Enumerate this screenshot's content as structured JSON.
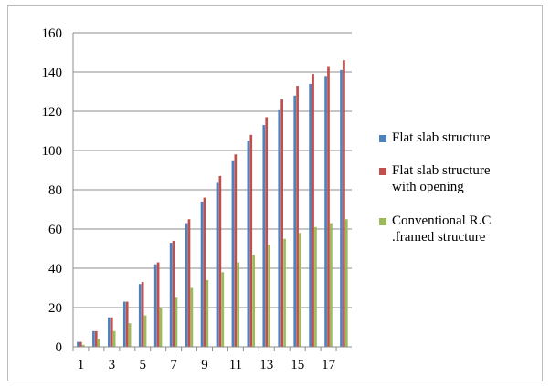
{
  "chart_data": {
    "type": "bar",
    "title": "",
    "xlabel": "",
    "ylabel": "",
    "ylim": [
      0,
      160
    ],
    "yticks": [
      0,
      20,
      40,
      60,
      80,
      100,
      120,
      140,
      160
    ],
    "grid": true,
    "legend_position": "right",
    "categories": [
      1,
      2,
      3,
      4,
      5,
      6,
      7,
      8,
      9,
      10,
      11,
      12,
      13,
      14,
      15,
      16,
      17,
      18
    ],
    "xtick_labels": [
      "1",
      "3",
      "5",
      "7",
      "9",
      "11",
      "13",
      "15",
      "17"
    ],
    "series": [
      {
        "name": "Flat slab structure",
        "color": "#4f81bd",
        "values": [
          2.5,
          8,
          15,
          23,
          32,
          42,
          53,
          63,
          74,
          84,
          95,
          105,
          113,
          121,
          128,
          134,
          138,
          141
        ]
      },
      {
        "name": "Flat slab structure with opening",
        "color": "#c0504d",
        "values": [
          2.5,
          8,
          15,
          23,
          33,
          43,
          54,
          65,
          76,
          87,
          98,
          108,
          117,
          126,
          133,
          139,
          143,
          146
        ]
      },
      {
        "name": "Conventional R.C .framed structure",
        "color": "#9bbb59",
        "values": [
          1,
          4,
          8,
          12,
          16,
          20,
          25,
          30,
          34,
          38,
          43,
          47,
          52,
          55,
          58,
          61,
          63,
          65
        ]
      }
    ]
  },
  "legend": {
    "items": [
      {
        "label_lines": [
          "Flat slab structure"
        ],
        "color": "#4f81bd"
      },
      {
        "label_lines": [
          "Flat slab structure",
          "with opening"
        ],
        "color": "#c0504d"
      },
      {
        "label_lines": [
          "Conventional R.C",
          ".framed structure"
        ],
        "color": "#9bbb59"
      }
    ]
  }
}
